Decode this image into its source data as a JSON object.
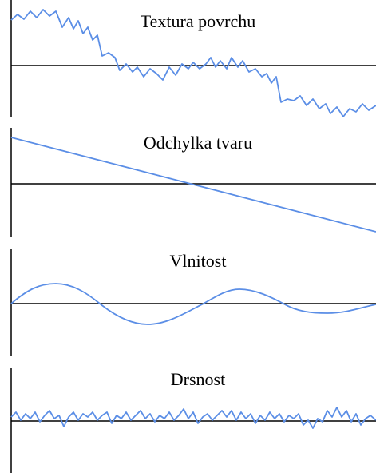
{
  "panels": [
    {
      "title": "Textura povrchu"
    },
    {
      "title": "Odchylka tvaru"
    },
    {
      "title": "Vlnitost"
    },
    {
      "title": "Drsnost"
    }
  ]
}
